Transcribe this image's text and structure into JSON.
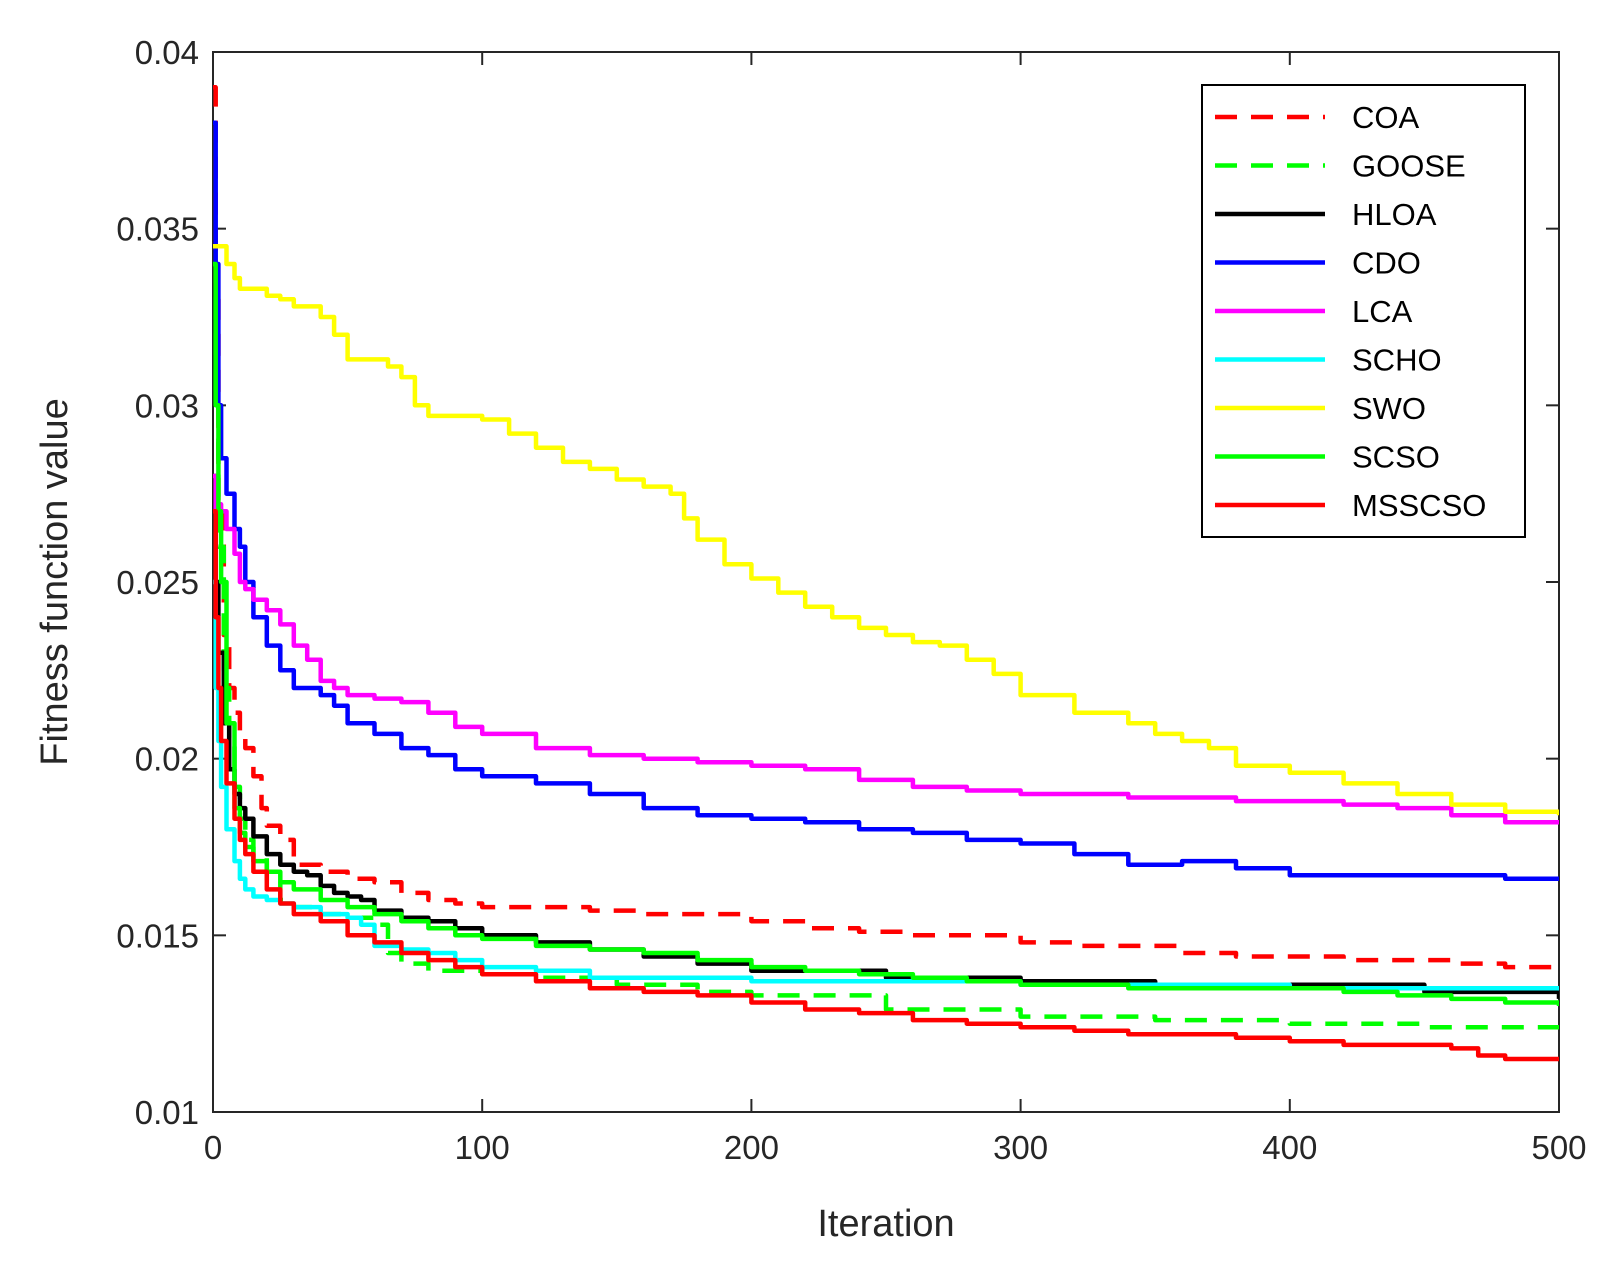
{
  "chart_data": {
    "type": "line",
    "title": "",
    "xlabel": "Iteration",
    "ylabel": "Fitness function value",
    "xlim": [
      0,
      500
    ],
    "ylim": [
      0.01,
      0.04
    ],
    "x_ticks": [
      0,
      100,
      200,
      300,
      400,
      500
    ],
    "y_ticks": [
      0.01,
      0.015,
      0.02,
      0.025,
      0.03,
      0.035,
      0.04
    ],
    "x_tick_labels": [
      "0",
      "100",
      "200",
      "300",
      "400",
      "500"
    ],
    "y_tick_labels": [
      "0.01",
      "0.015",
      "0.02",
      "0.025",
      "0.03",
      "0.035",
      "0.04"
    ],
    "grid": false,
    "legend_position": "top-right",
    "series": [
      {
        "name": "COA",
        "color": "#ff0000",
        "dash": true,
        "x": [
          0,
          1,
          2,
          4,
          6,
          8,
          10,
          12,
          15,
          18,
          20,
          25,
          30,
          40,
          50,
          60,
          70,
          80,
          90,
          100,
          120,
          140,
          160,
          180,
          200,
          220,
          240,
          260,
          280,
          300,
          320,
          340,
          360,
          380,
          400,
          420,
          440,
          460,
          480,
          500
        ],
        "y": [
          0.039,
          0.033,
          0.027,
          0.0235,
          0.022,
          0.0213,
          0.0207,
          0.0203,
          0.0195,
          0.0186,
          0.0181,
          0.0177,
          0.017,
          0.0168,
          0.0166,
          0.0165,
          0.0162,
          0.016,
          0.0159,
          0.0158,
          0.0158,
          0.0157,
          0.0156,
          0.0156,
          0.0154,
          0.0152,
          0.0151,
          0.015,
          0.015,
          0.0148,
          0.0147,
          0.0147,
          0.0145,
          0.0144,
          0.0144,
          0.0143,
          0.0143,
          0.0142,
          0.0141,
          0.0141
        ]
      },
      {
        "name": "GOOSE",
        "color": "#00ff00",
        "dash": true,
        "x": [
          0,
          1,
          2,
          4,
          6,
          8,
          10,
          12,
          15,
          20,
          25,
          30,
          40,
          50,
          60,
          65,
          70,
          80,
          100,
          120,
          150,
          180,
          200,
          250,
          300,
          350,
          400,
          450,
          500
        ],
        "y": [
          0.034,
          0.03,
          0.026,
          0.022,
          0.0205,
          0.0192,
          0.0183,
          0.0177,
          0.0172,
          0.0165,
          0.016,
          0.0158,
          0.0156,
          0.0155,
          0.0153,
          0.0145,
          0.0142,
          0.014,
          0.0139,
          0.0138,
          0.0136,
          0.0134,
          0.0133,
          0.0129,
          0.0127,
          0.0126,
          0.0125,
          0.0124,
          0.0124
        ]
      },
      {
        "name": "HLOA",
        "color": "#000000",
        "dash": false,
        "x": [
          0,
          1,
          2,
          4,
          6,
          8,
          10,
          12,
          15,
          20,
          25,
          30,
          35,
          40,
          45,
          50,
          55,
          60,
          70,
          80,
          90,
          100,
          120,
          140,
          160,
          180,
          200,
          250,
          300,
          350,
          400,
          450,
          500
        ],
        "y": [
          0.028,
          0.025,
          0.023,
          0.021,
          0.0197,
          0.019,
          0.0186,
          0.0183,
          0.0178,
          0.0173,
          0.017,
          0.0168,
          0.0167,
          0.0164,
          0.0162,
          0.0161,
          0.016,
          0.0157,
          0.0155,
          0.0154,
          0.0152,
          0.015,
          0.0148,
          0.0146,
          0.0144,
          0.0142,
          0.014,
          0.0138,
          0.0137,
          0.0136,
          0.0136,
          0.0134,
          0.0132
        ]
      },
      {
        "name": "CDO",
        "color": "#0000ff",
        "dash": false,
        "x": [
          0,
          1,
          2,
          3,
          5,
          8,
          10,
          12,
          15,
          20,
          25,
          30,
          40,
          45,
          50,
          60,
          70,
          80,
          90,
          100,
          120,
          140,
          160,
          180,
          200,
          220,
          240,
          260,
          280,
          300,
          320,
          340,
          360,
          380,
          400,
          420,
          440,
          460,
          480,
          500
        ],
        "y": [
          0.038,
          0.034,
          0.03,
          0.0285,
          0.0275,
          0.0265,
          0.026,
          0.025,
          0.024,
          0.0232,
          0.0225,
          0.022,
          0.0218,
          0.0215,
          0.021,
          0.0207,
          0.0203,
          0.0201,
          0.0197,
          0.0195,
          0.0193,
          0.019,
          0.0186,
          0.0184,
          0.0183,
          0.0182,
          0.018,
          0.0179,
          0.0177,
          0.0176,
          0.0173,
          0.017,
          0.0171,
          0.0169,
          0.0167,
          0.0167,
          0.0167,
          0.0167,
          0.0166,
          0.0166
        ]
      },
      {
        "name": "LCA",
        "color": "#ff00ff",
        "dash": false,
        "x": [
          0,
          1,
          2,
          3,
          5,
          8,
          10,
          12,
          15,
          20,
          25,
          30,
          35,
          40,
          45,
          50,
          60,
          70,
          80,
          90,
          100,
          120,
          140,
          160,
          180,
          200,
          220,
          240,
          260,
          280,
          300,
          320,
          340,
          360,
          380,
          400,
          420,
          440,
          460,
          480,
          500
        ],
        "y": [
          0.028,
          0.027,
          0.0272,
          0.027,
          0.0265,
          0.0258,
          0.025,
          0.0248,
          0.0245,
          0.0242,
          0.0238,
          0.0232,
          0.0228,
          0.0222,
          0.022,
          0.0218,
          0.0217,
          0.0216,
          0.0213,
          0.0209,
          0.0207,
          0.0203,
          0.0201,
          0.02,
          0.0199,
          0.0198,
          0.0197,
          0.0194,
          0.0192,
          0.0191,
          0.019,
          0.019,
          0.0189,
          0.0189,
          0.0188,
          0.0188,
          0.0187,
          0.0186,
          0.0184,
          0.0182,
          0.0182
        ]
      },
      {
        "name": "SCHO",
        "color": "#00ffff",
        "dash": false,
        "x": [
          0,
          1,
          2,
          3,
          5,
          8,
          10,
          12,
          15,
          20,
          25,
          30,
          40,
          50,
          55,
          60,
          70,
          80,
          90,
          100,
          120,
          140,
          160,
          180,
          200,
          250,
          300,
          350,
          400,
          450,
          500
        ],
        "y": [
          0.025,
          0.022,
          0.0205,
          0.0192,
          0.018,
          0.0171,
          0.0166,
          0.0163,
          0.0161,
          0.016,
          0.0159,
          0.0158,
          0.0156,
          0.0155,
          0.0153,
          0.0147,
          0.0146,
          0.0145,
          0.0143,
          0.0141,
          0.014,
          0.0138,
          0.0138,
          0.0138,
          0.0137,
          0.0137,
          0.0136,
          0.0136,
          0.0135,
          0.0135,
          0.0135
        ]
      },
      {
        "name": "SWO",
        "color": "#ffff00",
        "dash": false,
        "x": [
          0,
          5,
          8,
          10,
          15,
          20,
          25,
          30,
          40,
          45,
          50,
          60,
          65,
          70,
          75,
          80,
          90,
          100,
          110,
          120,
          130,
          140,
          150,
          160,
          170,
          175,
          180,
          190,
          200,
          210,
          220,
          230,
          240,
          250,
          260,
          270,
          280,
          290,
          300,
          320,
          340,
          350,
          360,
          370,
          380,
          390,
          400,
          420,
          440,
          460,
          480,
          500
        ],
        "y": [
          0.0345,
          0.034,
          0.0336,
          0.0333,
          0.0333,
          0.0331,
          0.033,
          0.0328,
          0.0325,
          0.032,
          0.0313,
          0.0313,
          0.0311,
          0.0308,
          0.03,
          0.0297,
          0.0297,
          0.0296,
          0.0292,
          0.0288,
          0.0284,
          0.0282,
          0.0279,
          0.0277,
          0.0275,
          0.0268,
          0.0262,
          0.0255,
          0.0251,
          0.0247,
          0.0243,
          0.024,
          0.0237,
          0.0235,
          0.0233,
          0.0232,
          0.0228,
          0.0224,
          0.0218,
          0.0213,
          0.021,
          0.0207,
          0.0205,
          0.0203,
          0.0198,
          0.0198,
          0.0196,
          0.0193,
          0.019,
          0.0187,
          0.0185,
          0.0184
        ]
      },
      {
        "name": "SCSO",
        "color": "#00ff00",
        "dash": false,
        "x": [
          0,
          1,
          2,
          3,
          5,
          8,
          10,
          12,
          15,
          20,
          25,
          30,
          40,
          50,
          60,
          70,
          80,
          90,
          100,
          120,
          140,
          160,
          180,
          200,
          220,
          240,
          260,
          280,
          300,
          320,
          340,
          360,
          380,
          400,
          420,
          440,
          460,
          480,
          500
        ],
        "y": [
          0.034,
          0.03,
          0.027,
          0.025,
          0.021,
          0.0186,
          0.0179,
          0.0175,
          0.0171,
          0.0168,
          0.0165,
          0.0163,
          0.016,
          0.0158,
          0.0156,
          0.0154,
          0.0152,
          0.015,
          0.0149,
          0.0147,
          0.0146,
          0.0145,
          0.0143,
          0.0141,
          0.014,
          0.0139,
          0.0138,
          0.0137,
          0.0136,
          0.0136,
          0.0135,
          0.0135,
          0.0135,
          0.0135,
          0.0134,
          0.0133,
          0.0132,
          0.0131,
          0.013
        ]
      },
      {
        "name": "MSSCSO",
        "color": "#ff0000",
        "dash": false,
        "x": [
          0,
          1,
          2,
          3,
          5,
          8,
          10,
          12,
          15,
          20,
          25,
          30,
          40,
          50,
          60,
          70,
          80,
          90,
          100,
          120,
          140,
          160,
          180,
          200,
          220,
          240,
          260,
          280,
          300,
          320,
          340,
          360,
          380,
          400,
          420,
          440,
          460,
          470,
          480,
          500
        ],
        "y": [
          0.027,
          0.024,
          0.022,
          0.0205,
          0.0193,
          0.0183,
          0.0177,
          0.0173,
          0.0168,
          0.0163,
          0.0159,
          0.0156,
          0.0154,
          0.015,
          0.0148,
          0.0145,
          0.0143,
          0.0141,
          0.0139,
          0.0137,
          0.0135,
          0.0134,
          0.0133,
          0.0131,
          0.0129,
          0.0128,
          0.0126,
          0.0125,
          0.0124,
          0.0123,
          0.0122,
          0.0122,
          0.0121,
          0.012,
          0.0119,
          0.0119,
          0.0118,
          0.0116,
          0.0115,
          0.0115
        ]
      }
    ]
  }
}
